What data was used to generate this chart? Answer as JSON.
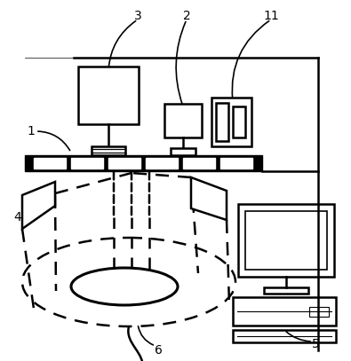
{
  "bg_color": "#ffffff",
  "line_color": "#000000",
  "dashed_color": "#000000",
  "figsize": [
    3.95,
    4.07
  ],
  "dpi": 100
}
